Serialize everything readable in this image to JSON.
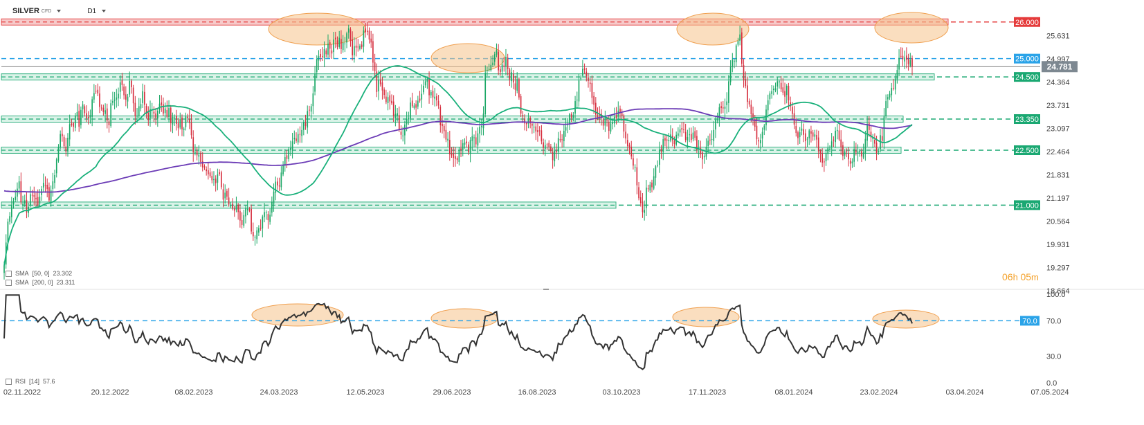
{
  "toolbar": {
    "symbol": "SILVER",
    "symbol_type": "CFD",
    "timeframe": "D1"
  },
  "timer": {
    "hours": "06",
    "h_unit": "h",
    "minutes": "05",
    "m_unit": "m"
  },
  "colors": {
    "up": "#19a765",
    "down": "#d62f3f",
    "sma50": "#18b07a",
    "sma200": "#6b3bb6",
    "level_blue": "#2aa3e8",
    "level_green": "#1aa872",
    "level_red": "#e53b3b",
    "highlight": "#f6c38a",
    "rsi": "#333333"
  },
  "chart_data": [
    {
      "type": "candlestick",
      "x_tick_labels": [
        "02.11.2022",
        "20.12.2022",
        "08.02.2023",
        "24.03.2023",
        "12.05.2023",
        "29.06.2023",
        "16.08.2023",
        "03.10.2023",
        "17.11.2023",
        "08.01.2024",
        "23.02.2024",
        "03.04.2024",
        "07.05.2024"
      ],
      "y_ticks": [
        25.631,
        24.997,
        24.364,
        23.731,
        23.097,
        22.464,
        21.831,
        21.197,
        20.564,
        19.931,
        19.297,
        18.664
      ],
      "ylim": [
        18.664,
        26.26
      ],
      "current_price": 24.781,
      "levels": [
        {
          "label": "26.000",
          "value": 26.0,
          "color": "red"
        },
        {
          "label": "25.000",
          "value": 25.0,
          "color": "blue"
        },
        {
          "label": "24.500",
          "value": 24.5,
          "color": "green"
        },
        {
          "label": "23.350",
          "value": 23.35,
          "color": "green"
        },
        {
          "label": "22.500",
          "value": 22.5,
          "color": "green"
        },
        {
          "label": "21.000",
          "value": 21.0,
          "color": "green"
        }
      ],
      "indicators": [
        {
          "label": "SMA",
          "params": "[50, 0]",
          "value": "23.302"
        },
        {
          "label": "SMA",
          "params": "[200, 0]",
          "value": "23.311"
        }
      ],
      "series_close": [
        19.35,
        19.98,
        20.55,
        20.7,
        20.98,
        21.11,
        21.23,
        21.45,
        21.65,
        21.08,
        21.03,
        21.13,
        20.8,
        20.95,
        21.3,
        21.28,
        21.23,
        21.16,
        21.01,
        21.23,
        21.44,
        21.61,
        21.54,
        21.44,
        21.13,
        21.41,
        21.65,
        21.82,
        22.25,
        22.59,
        22.94,
        22.88,
        22.61,
        22.46,
        22.84,
        23.21,
        23.18,
        23.14,
        23.45,
        23.54,
        23.14,
        23.6,
        23.75,
        23.51,
        23.37,
        23.37,
        23.46,
        23.89,
        24.06,
        24.1,
        24.05,
        23.68,
        23.66,
        23.54,
        23.59,
        23.31,
        23.18,
        23.78,
        23.84,
        23.88,
        23.94,
        24.04,
        24.35,
        24.28,
        24.0,
        23.88,
        23.96,
        24.39,
        24.22,
        23.78,
        23.43,
        23.44,
        23.7,
        23.76,
        24.11,
        23.74,
        23.49,
        23.32,
        23.62,
        23.6,
        23.5,
        23.38,
        23.58,
        23.77,
        23.74,
        23.5,
        23.64,
        23.41,
        23.65,
        23.24,
        23.41,
        23.39,
        23.22,
        23.1,
        23.35,
        23.07,
        23.09,
        23.42,
        23.38,
        23.24,
        22.91,
        22.44,
        22.44,
        22.36,
        22.38,
        22.18,
        22.03,
        22.03,
        21.93,
        21.84,
        21.79,
        21.68,
        21.71,
        21.6,
        21.84,
        21.85,
        21.49,
        21.15,
        21.34,
        21.23,
        21.02,
        20.98,
        20.9,
        20.85,
        21.0,
        20.81,
        20.58,
        20.46,
        20.73,
        20.91,
        20.9,
        20.85,
        20.28,
        20.15,
        20.13,
        20.31,
        20.37,
        20.36,
        20.69,
        20.81,
        20.81,
        20.59,
        20.74,
        21.09,
        21.37,
        21.64,
        21.54,
        21.51,
        21.89,
        22.09,
        22.31,
        22.26,
        22.53,
        22.56,
        22.74,
        22.84,
        22.75,
        22.94,
        22.94,
        23.05,
        23.26,
        23.16,
        23.57,
        23.59,
        23.7,
        24.05,
        24.58,
        24.99,
        25.07,
        25.04,
        25.05,
        25.26,
        25.12,
        25.41,
        25.27,
        25.14,
        25.52,
        25.52,
        25.32,
        25.57,
        25.26,
        25.43,
        25.41,
        25.69,
        25.83,
        25.49,
        25.09,
        25.34,
        25.3,
        25.32,
        25.35,
        25.31,
        25.77,
        25.72,
        25.73,
        25.52,
        25.44,
        24.89,
        24.66,
        24.09,
        24.43,
        24.3,
        24.13,
        24.01,
        23.81,
        23.95,
        23.83,
        23.78,
        23.43,
        23.49,
        23.51,
        23.06,
        22.92,
        22.9,
        23.2,
        23.35,
        23.38,
        23.8,
        23.7,
        23.72,
        23.66,
        23.85,
        23.85,
        24.04,
        24.26,
        24.38,
        24.45,
        24.0,
        24.09,
        23.94,
        23.96,
        23.86,
        23.72,
        23.18,
        23.16,
        23.02,
        22.79,
        22.81,
        22.39,
        22.36,
        22.29,
        22.26,
        22.23,
        22.49,
        22.5,
        22.69,
        22.71,
        22.69,
        22.44,
        22.78,
        22.88,
        22.85,
        22.66,
        22.96,
        23.14,
        23.16,
        23.5,
        24.61,
        24.69,
        24.72,
        24.83,
        24.89,
        25.12,
        25.23,
        24.68,
        24.63,
        24.84,
        24.79,
        25.05,
        24.71,
        24.43,
        24.63,
        24.35,
        24.15,
        24.44,
        23.94,
        23.5,
        23.42,
        23.23,
        23.21,
        23.33,
        23.23,
        23.17,
        23.14,
        23.01,
        22.99,
        23.03,
        22.74,
        22.56,
        22.64,
        22.65,
        22.59,
        22.48,
        22.23,
        22.49,
        22.45,
        22.83,
        22.77,
        22.78,
        23.03,
        23.13,
        23.2,
        23.48,
        23.39,
        23.46,
        23.84,
        23.88,
        24.4,
        24.48,
        24.72,
        24.69,
        24.52,
        24.39,
        24.31,
        23.93,
        23.74,
        23.47,
        23.41,
        23.44,
        23.38,
        23.17,
        23.34,
        23.32,
        23.03,
        23.23,
        23.26,
        23.41,
        23.38,
        23.58,
        23.54,
        23.43,
        23.01,
        22.82,
        22.61,
        22.58,
        22.33,
        22.08,
        22.04,
        21.54,
        21.19,
        21.06,
        20.81,
        20.87,
        21.48,
        21.44,
        21.56,
        21.49,
        21.79,
        22.06,
        22.09,
        22.52,
        22.46,
        22.8,
        22.76,
        22.76,
        22.78,
        22.93,
        22.77,
        22.67,
        22.92,
        22.96,
        23.07,
        23.06,
        23.05,
        22.78,
        22.86,
        22.93,
        22.78,
        22.98,
        22.84,
        22.51,
        22.55,
        22.39,
        22.25,
        22.34,
        22.58,
        22.76,
        22.77,
        22.8,
        23.05,
        23.33,
        23.33,
        23.67,
        23.65,
        23.64,
        23.69,
        23.83,
        24.38,
        24.78,
        24.97,
        24.94,
        25.36,
        25.48,
        25.66,
        24.86,
        24.42,
        24.25,
        23.82,
        23.75,
        23.48,
        23.36,
        23.14,
        22.8,
        22.74,
        22.78,
        23.0,
        23.17,
        23.61,
        23.86,
        24.05,
        24.11,
        24.18,
        24.19,
        24.38,
        24.38,
        24.16,
        24.07,
        23.96,
        24.26,
        23.86,
        23.7,
        23.49,
        23.2,
        22.97,
        22.83,
        22.99,
        23.09,
        22.92,
        22.75,
        22.81,
        23.04,
        22.95,
        22.87,
        22.93,
        22.79,
        22.47,
        22.41,
        22.16,
        22.17,
        22.4,
        22.56,
        22.54,
        22.74,
        22.76,
        23.03,
        23.05,
        22.79,
        22.59,
        22.34,
        22.46,
        22.46,
        22.25,
        22.13,
        22.19,
        22.53,
        22.44,
        22.46,
        22.49,
        22.33,
        22.44,
        22.81,
        23.22,
        23.05,
        22.85,
        22.83,
        22.68,
        22.42,
        22.48,
        22.91,
        22.76,
        23.42,
        23.84,
        23.95,
        24.04,
        24.2,
        24.19,
        24.46,
        24.69,
        25.02,
        25.06,
        24.98,
        25.03,
        24.97,
        24.85,
        24.96,
        24.78
      ]
    },
    {
      "type": "line",
      "name": "RSI",
      "params": "[14]",
      "value": "57.6",
      "y_ticks": [
        100.0,
        70.0,
        30.0,
        0.0
      ],
      "ylim": [
        0,
        100
      ],
      "overbought": {
        "label": "70.0",
        "value": 70
      }
    }
  ]
}
